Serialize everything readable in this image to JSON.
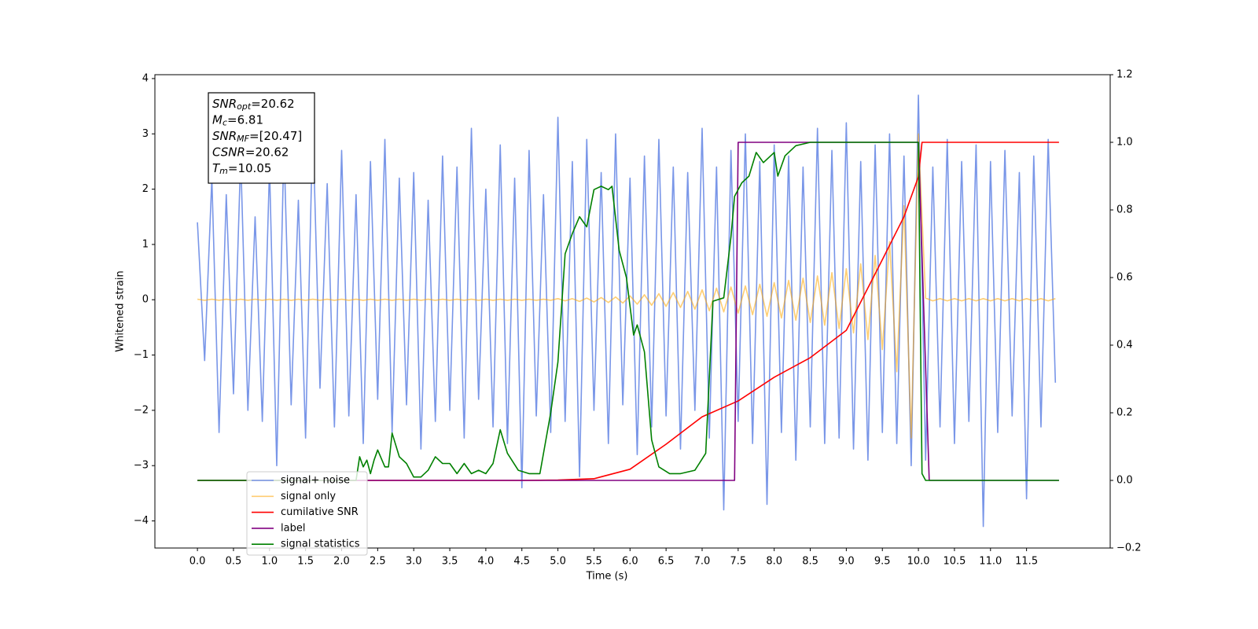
{
  "chart_data": {
    "type": "line",
    "xlabel": "Time (s)",
    "ylabel": "Whitened strain",
    "annotation": [
      {
        "symbol": "SNR",
        "sub": "opt",
        "text": "=20.62"
      },
      {
        "symbol": "M",
        "sub": "c",
        "text": "=6.81"
      },
      {
        "symbol": "SNR",
        "sub": "MF",
        "text": "=[20.47]"
      },
      {
        "symbol": "CSNR",
        "sub": "",
        "text": "=20.62"
      },
      {
        "symbol": "T",
        "sub": "m",
        "text": "=10.05"
      }
    ],
    "xlim": [
      -0.59,
      12.66
    ],
    "ylim": [
      -4.49,
      4.07
    ],
    "y2lim": [
      -0.2,
      1.2
    ],
    "xticks": [
      {
        "value": 0,
        "label": "0.0"
      },
      0.5,
      {
        "value": 1,
        "label": "1.0"
      },
      1.5,
      {
        "value": 2,
        "label": "2.0"
      },
      2.5,
      {
        "value": 3,
        "label": "3.0"
      },
      3.5,
      {
        "value": 4,
        "label": "4.0"
      },
      4.5,
      {
        "value": 5,
        "label": "5.0"
      },
      5.5,
      {
        "value": 6,
        "label": "6.0"
      },
      6.5,
      {
        "value": 7,
        "label": "7.0"
      },
      7.5,
      {
        "value": 8,
        "label": "8.0"
      },
      8.5,
      {
        "value": 9,
        "label": "9.0"
      },
      9.5,
      {
        "value": 10,
        "label": "10.0"
      },
      10.5,
      {
        "value": 11,
        "label": "11.0"
      },
      11.5
    ],
    "yticks": [
      {
        "value": -4,
        "label": "−4"
      },
      {
        "value": -3,
        "label": "−3"
      },
      {
        "value": -2,
        "label": "−2"
      },
      {
        "value": -1,
        "label": "−1"
      },
      0,
      1,
      2,
      3,
      4
    ],
    "y2ticks": [
      {
        "value": -0.2,
        "label": "−0.2"
      },
      {
        "value": 0,
        "label": "0.0"
      },
      0.2,
      0.4,
      0.6,
      0.8,
      {
        "value": 1,
        "label": "1.0"
      },
      1.2
    ],
    "legend_loc": "lower left",
    "x": [
      0,
      0.1,
      0.2,
      0.3,
      0.4,
      0.5,
      0.6,
      0.7,
      0.8,
      0.9,
      1,
      1.1,
      1.2,
      1.3,
      1.4,
      1.5,
      1.6,
      1.7,
      1.8,
      1.9,
      2,
      2.1,
      2.2,
      2.3,
      2.4,
      2.5,
      2.6,
      2.7,
      2.8,
      2.9,
      3,
      3.1,
      3.2,
      3.3,
      3.4,
      3.5,
      3.6,
      3.7,
      3.8,
      3.9,
      4,
      4.1,
      4.2,
      4.3,
      4.4,
      4.5,
      4.6,
      4.7,
      4.8,
      4.9,
      5,
      5.1,
      5.2,
      5.3,
      5.4,
      5.5,
      5.6,
      5.7,
      5.8,
      5.9,
      6,
      6.1,
      6.2,
      6.3,
      6.4,
      6.5,
      6.6,
      6.7,
      6.8,
      6.9,
      7,
      7.1,
      7.2,
      7.3,
      7.4,
      7.5,
      7.6,
      7.7,
      7.8,
      7.9,
      8,
      8.1,
      8.2,
      8.3,
      8.4,
      8.5,
      8.6,
      8.7,
      8.8,
      8.9,
      9,
      9.1,
      9.2,
      9.3,
      9.4,
      9.5,
      9.6,
      9.7,
      9.8,
      9.9,
      10,
      10.1,
      10.2,
      10.3,
      10.4,
      10.5,
      10.6,
      10.7,
      10.8,
      10.9,
      11,
      11.1,
      11.2,
      11.3,
      11.4,
      11.5,
      11.6,
      11.7,
      11.8,
      11.9
    ],
    "series": [
      {
        "name": "signal+ noise",
        "color": "#7996e8",
        "values": [
          1.4,
          -1.1,
          2.2,
          -2.4,
          1.9,
          -1.7,
          2.6,
          -2.0,
          1.5,
          -2.2,
          2.4,
          -3.0,
          2.8,
          -1.9,
          1.8,
          -2.5,
          3.2,
          -1.6,
          2.1,
          -2.3,
          2.7,
          -2.1,
          1.9,
          -2.6,
          2.5,
          -1.8,
          2.9,
          -2.4,
          2.2,
          -1.9,
          2.3,
          -2.7,
          1.8,
          -2.2,
          2.6,
          -2.0,
          2.4,
          -2.5,
          3.1,
          -1.8,
          2.0,
          -2.3,
          2.8,
          -2.6,
          2.2,
          -3.4,
          2.7,
          -2.1,
          1.9,
          -2.4,
          3.3,
          -2.2,
          2.5,
          -3.2,
          2.9,
          -2.0,
          2.3,
          -2.6,
          3.0,
          -1.9,
          2.2,
          -2.8,
          2.6,
          -2.3,
          2.9,
          -2.1,
          2.4,
          -2.7,
          2.3,
          -2.0,
          3.1,
          -2.5,
          2.4,
          -3.8,
          2.7,
          -2.2,
          3.0,
          -2.6,
          2.5,
          -3.7,
          2.8,
          -2.4,
          2.6,
          -2.9,
          2.4,
          -2.3,
          3.1,
          -2.6,
          2.7,
          -2.5,
          3.2,
          -2.7,
          2.5,
          -2.9,
          2.8,
          -2.4,
          3.0,
          -2.6,
          2.6,
          -3.0,
          3.7,
          -2.9,
          2.4,
          -2.3,
          2.9,
          -2.6,
          2.5,
          -2.2,
          2.8,
          -4.1,
          2.5,
          -2.4,
          2.7,
          -2.1,
          2.3,
          -3.6,
          2.6,
          -2.3,
          2.9,
          -1.5
        ]
      },
      {
        "name": "signal only",
        "color": "#ffa500",
        "values": [
          0.01,
          -0.01,
          0.01,
          -0.01,
          0.01,
          -0.01,
          0.01,
          -0.01,
          0.01,
          -0.01,
          0.01,
          -0.01,
          0.01,
          -0.01,
          0.01,
          -0.01,
          0.01,
          -0.01,
          0.01,
          -0.01,
          0.01,
          -0.01,
          0.01,
          -0.01,
          0.01,
          -0.01,
          0.01,
          -0.01,
          0.01,
          -0.01,
          0.01,
          -0.01,
          0.01,
          -0.01,
          0.01,
          -0.01,
          0.01,
          -0.01,
          0.01,
          -0.01,
          0.01,
          -0.01,
          0.01,
          -0.01,
          0.01,
          -0.01,
          0.01,
          -0.01,
          0.01,
          -0.01,
          0.02,
          -0.02,
          0.02,
          -0.03,
          0.03,
          -0.04,
          0.04,
          -0.05,
          0.05,
          -0.06,
          0.07,
          -0.08,
          0.09,
          -0.1,
          0.11,
          -0.12,
          0.13,
          -0.14,
          0.15,
          -0.17,
          0.18,
          -0.2,
          0.21,
          -0.22,
          0.23,
          -0.24,
          0.25,
          -0.27,
          0.28,
          -0.3,
          0.31,
          -0.33,
          0.35,
          -0.37,
          0.39,
          -0.41,
          0.43,
          -0.46,
          0.49,
          -0.52,
          0.56,
          -0.6,
          0.65,
          -0.72,
          0.8,
          -0.9,
          1.05,
          -1.3,
          1.7,
          -2.5,
          3.0,
          0.03,
          -0.02,
          0.02,
          -0.02,
          0.02,
          -0.02,
          0.02,
          -0.02,
          0.02,
          -0.02,
          0.02,
          -0.02,
          0.02,
          -0.02,
          0.02,
          -0.02,
          0.02,
          -0.02,
          0.02
        ]
      },
      {
        "name": "cumilative SNR",
        "color": "#ff0000",
        "axis": "y2",
        "x": [
          0,
          4.5,
          5.0,
          5.5,
          6.0,
          6.5,
          7.0,
          7.5,
          8.0,
          8.5,
          9.0,
          9.5,
          9.8,
          10.0,
          10.05,
          11.95
        ],
        "values": [
          0,
          0,
          0.001,
          0.005,
          0.033,
          0.107,
          0.188,
          0.235,
          0.305,
          0.363,
          0.444,
          0.653,
          0.78,
          0.898,
          1.0,
          1.0
        ]
      },
      {
        "name": "label",
        "color": "#800080",
        "axis": "y2",
        "x": [
          0,
          7.45,
          7.5,
          10.0,
          10.15,
          11.95
        ],
        "values": [
          0,
          0,
          1,
          1,
          0,
          0
        ]
      },
      {
        "name": "signal statistics",
        "color": "#008000",
        "axis": "y2",
        "x": [
          0,
          2.2,
          2.25,
          2.3,
          2.35,
          2.4,
          2.45,
          2.5,
          2.6,
          2.65,
          2.7,
          2.8,
          2.9,
          3.0,
          3.1,
          3.2,
          3.3,
          3.4,
          3.5,
          3.6,
          3.7,
          3.8,
          3.9,
          4.0,
          4.1,
          4.2,
          4.3,
          4.45,
          4.6,
          4.75,
          4.9,
          5.0,
          5.1,
          5.2,
          5.3,
          5.4,
          5.5,
          5.6,
          5.7,
          5.75,
          5.85,
          5.95,
          6.05,
          6.1,
          6.2,
          6.3,
          6.4,
          6.55,
          6.7,
          6.9,
          7.05,
          7.15,
          7.3,
          7.4,
          7.45,
          7.55,
          7.65,
          7.75,
          7.85,
          8.0,
          8.05,
          8.15,
          8.3,
          8.5,
          10.0,
          10.05,
          10.1,
          11.95
        ],
        "values": [
          0,
          0,
          0.07,
          0.04,
          0.06,
          0.02,
          0.06,
          0.09,
          0.04,
          0.04,
          0.14,
          0.07,
          0.05,
          0.01,
          0.01,
          0.03,
          0.07,
          0.05,
          0.05,
          0.02,
          0.05,
          0.02,
          0.03,
          0.02,
          0.05,
          0.15,
          0.08,
          0.03,
          0.02,
          0.02,
          0.2,
          0.35,
          0.67,
          0.73,
          0.78,
          0.75,
          0.86,
          0.87,
          0.86,
          0.87,
          0.68,
          0.6,
          0.43,
          0.46,
          0.38,
          0.12,
          0.04,
          0.02,
          0.02,
          0.03,
          0.08,
          0.53,
          0.54,
          0.72,
          0.84,
          0.88,
          0.9,
          0.97,
          0.94,
          0.97,
          0.9,
          0.96,
          0.99,
          1.0,
          1.0,
          0.02,
          0,
          0
        ]
      }
    ]
  }
}
